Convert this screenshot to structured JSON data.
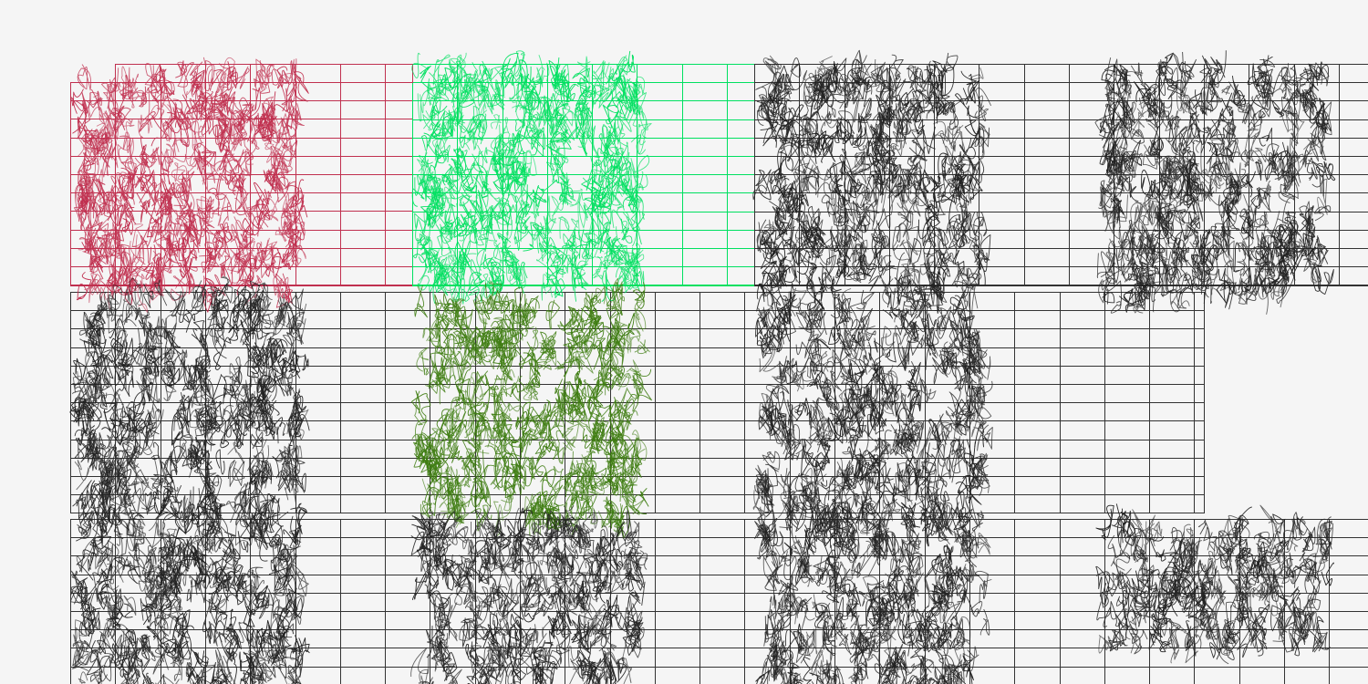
{
  "colors": {
    "background": "#f5f5f5",
    "crimson": "#c0304f",
    "bright_green": "#00e060",
    "olive_green": "#3f7d12",
    "ink": "#222222",
    "grid_dark": "#333333"
  },
  "grids": [
    {
      "name": "grid-top-left-crimson",
      "color": "crimson"
    },
    {
      "name": "grid-top-green",
      "color": "bright_green"
    },
    {
      "name": "grid-top-right-ink",
      "color": "grid_dark"
    },
    {
      "name": "grid-middle-ink",
      "color": "grid_dark"
    },
    {
      "name": "grid-bottom-ink",
      "color": "grid_dark"
    }
  ],
  "scribble_panels": [
    {
      "name": "scribble-r1-c1",
      "color": "crimson"
    },
    {
      "name": "scribble-r1-c2",
      "color": "bright_green"
    },
    {
      "name": "scribble-r1-c3",
      "color": "ink"
    },
    {
      "name": "scribble-r1-c4",
      "color": "ink"
    },
    {
      "name": "scribble-r2-c1",
      "color": "ink"
    },
    {
      "name": "scribble-r2-c2",
      "color": "olive_green"
    },
    {
      "name": "scribble-r2-c3",
      "color": "ink"
    },
    {
      "name": "scribble-r3-c1",
      "color": "ink"
    },
    {
      "name": "scribble-r3-c2",
      "color": "ink"
    },
    {
      "name": "scribble-r3-c3",
      "color": "ink"
    },
    {
      "name": "scribble-r3-c4",
      "color": "ink"
    }
  ]
}
